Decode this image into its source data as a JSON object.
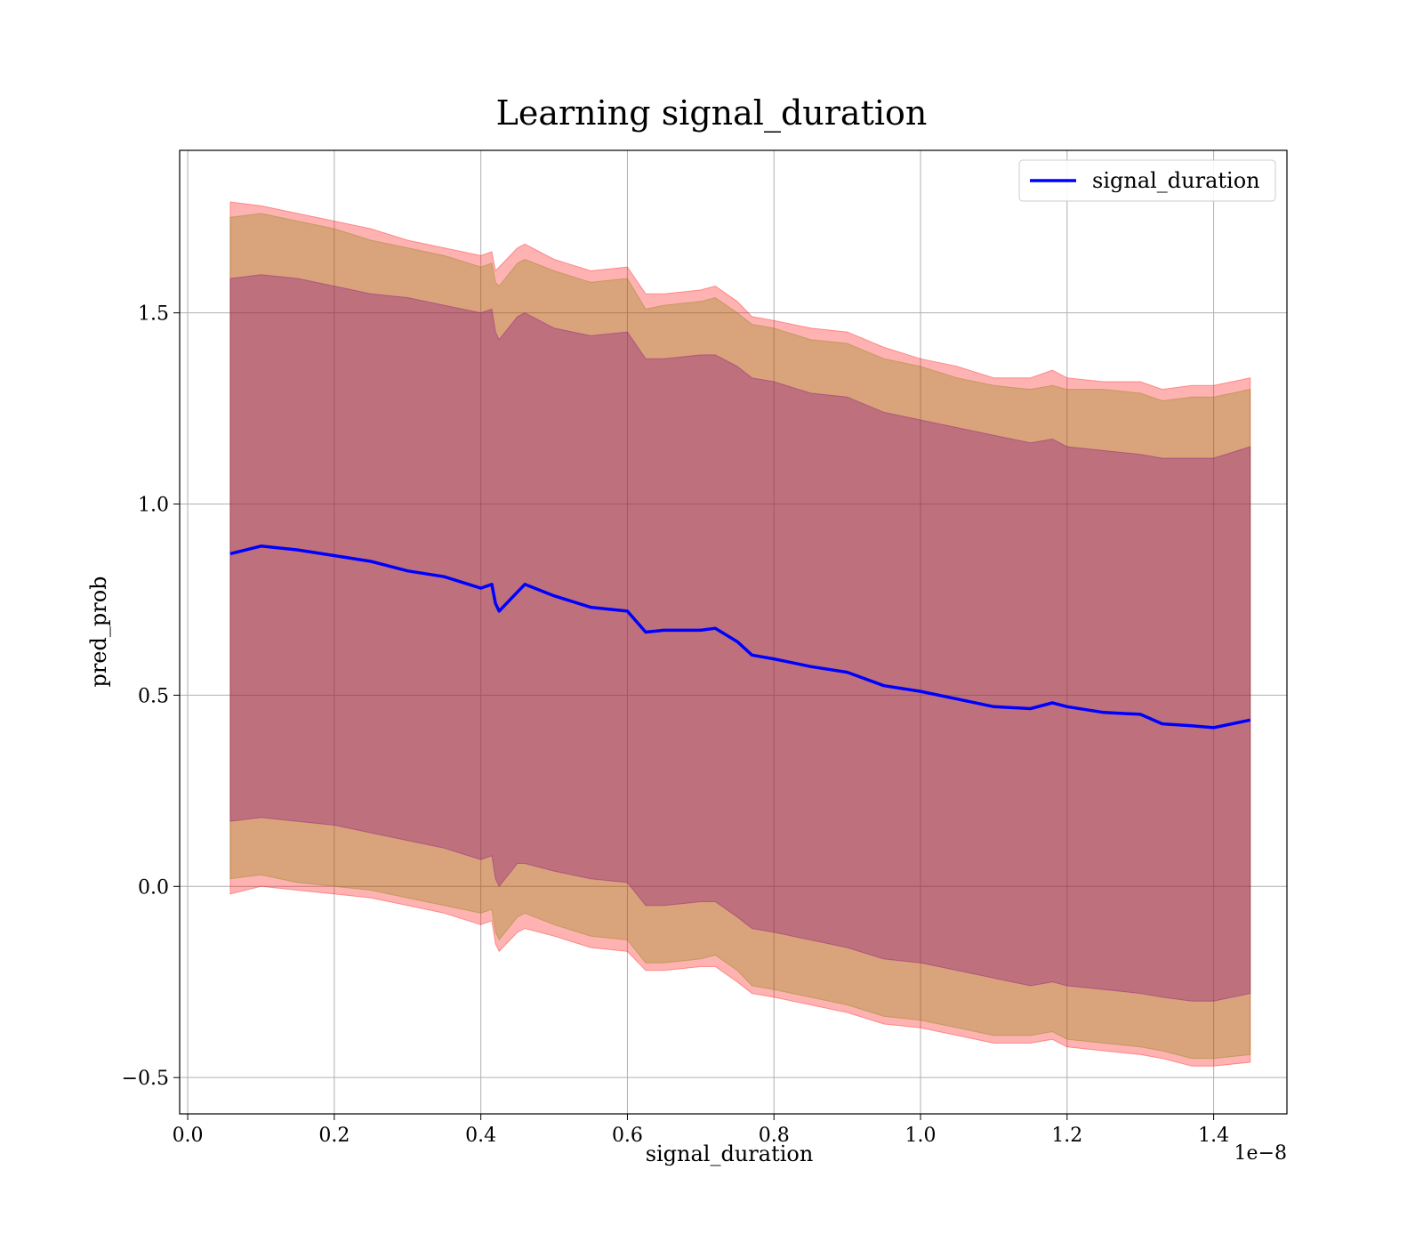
{
  "chart_data": {
    "type": "line",
    "title": "Learning signal_duration",
    "xlabel": "signal_duration",
    "ylabel": "pred_prob",
    "x_offset_label": "1e−8",
    "xlim": [
      -0.011,
      1.5
    ],
    "ylim": [
      -0.595,
      1.925
    ],
    "grid": true,
    "legend_position": "top-right",
    "x_ticks": [
      0.0,
      0.2,
      0.4,
      0.6,
      0.8,
      1.0,
      1.2,
      1.4
    ],
    "x_tick_labels": [
      "0.0",
      "0.2",
      "0.4",
      "0.6",
      "0.8",
      "1.0",
      "1.2",
      "1.4"
    ],
    "y_ticks": [
      -0.5,
      0.0,
      0.5,
      1.0,
      1.5
    ],
    "y_tick_labels": [
      "−0.5",
      "0.0",
      "0.5",
      "1.0",
      "1.5"
    ],
    "colors": {
      "line": "#0000ff",
      "outer_band": "#ff0000",
      "middle_band": "#808000",
      "inner_band": "#800080",
      "grid": "#b0b0b0"
    },
    "series": [
      {
        "name": "signal_duration",
        "x": [
          0.058,
          0.1,
          0.15,
          0.2,
          0.25,
          0.3,
          0.35,
          0.4,
          0.415,
          0.42,
          0.425,
          0.45,
          0.46,
          0.5,
          0.55,
          0.6,
          0.625,
          0.65,
          0.7,
          0.72,
          0.75,
          0.77,
          0.8,
          0.85,
          0.9,
          0.95,
          1.0,
          1.05,
          1.1,
          1.15,
          1.18,
          1.2,
          1.25,
          1.3,
          1.33,
          1.37,
          1.4,
          1.45
        ],
        "values": [
          0.87,
          0.89,
          0.88,
          0.865,
          0.85,
          0.825,
          0.81,
          0.78,
          0.79,
          0.74,
          0.72,
          0.77,
          0.79,
          0.76,
          0.73,
          0.72,
          0.665,
          0.67,
          0.67,
          0.675,
          0.64,
          0.605,
          0.595,
          0.575,
          0.56,
          0.525,
          0.51,
          0.49,
          0.47,
          0.465,
          0.48,
          0.47,
          0.455,
          0.45,
          0.425,
          0.42,
          0.415,
          0.435
        ]
      }
    ],
    "bands": [
      {
        "level": "outer",
        "upper": [
          1.79,
          1.78,
          1.76,
          1.74,
          1.72,
          1.69,
          1.67,
          1.65,
          1.66,
          1.61,
          1.62,
          1.67,
          1.68,
          1.64,
          1.61,
          1.62,
          1.55,
          1.55,
          1.56,
          1.57,
          1.53,
          1.49,
          1.48,
          1.46,
          1.45,
          1.41,
          1.38,
          1.36,
          1.33,
          1.33,
          1.35,
          1.33,
          1.32,
          1.32,
          1.3,
          1.31,
          1.31,
          1.33
        ],
        "lower": [
          -0.02,
          0.0,
          -0.01,
          -0.02,
          -0.03,
          -0.05,
          -0.07,
          -0.1,
          -0.09,
          -0.15,
          -0.17,
          -0.12,
          -0.11,
          -0.13,
          -0.16,
          -0.17,
          -0.22,
          -0.22,
          -0.21,
          -0.21,
          -0.25,
          -0.28,
          -0.29,
          -0.31,
          -0.33,
          -0.36,
          -0.37,
          -0.39,
          -0.41,
          -0.41,
          -0.4,
          -0.42,
          -0.43,
          -0.44,
          -0.45,
          -0.47,
          -0.47,
          -0.46
        ]
      },
      {
        "level": "middle",
        "upper": [
          1.75,
          1.76,
          1.74,
          1.72,
          1.69,
          1.67,
          1.65,
          1.62,
          1.63,
          1.58,
          1.57,
          1.63,
          1.64,
          1.61,
          1.58,
          1.59,
          1.51,
          1.52,
          1.53,
          1.54,
          1.5,
          1.47,
          1.46,
          1.43,
          1.42,
          1.38,
          1.36,
          1.33,
          1.31,
          1.3,
          1.31,
          1.3,
          1.3,
          1.29,
          1.27,
          1.28,
          1.28,
          1.3
        ],
        "lower": [
          0.02,
          0.03,
          0.01,
          0.0,
          -0.01,
          -0.03,
          -0.05,
          -0.07,
          -0.06,
          -0.12,
          -0.14,
          -0.08,
          -0.07,
          -0.1,
          -0.13,
          -0.14,
          -0.2,
          -0.2,
          -0.19,
          -0.18,
          -0.22,
          -0.26,
          -0.27,
          -0.29,
          -0.31,
          -0.34,
          -0.35,
          -0.37,
          -0.39,
          -0.39,
          -0.38,
          -0.4,
          -0.41,
          -0.42,
          -0.43,
          -0.45,
          -0.45,
          -0.44
        ]
      },
      {
        "level": "inner",
        "upper": [
          1.59,
          1.6,
          1.59,
          1.57,
          1.55,
          1.54,
          1.52,
          1.5,
          1.51,
          1.45,
          1.43,
          1.49,
          1.5,
          1.46,
          1.44,
          1.45,
          1.38,
          1.38,
          1.39,
          1.39,
          1.36,
          1.33,
          1.32,
          1.29,
          1.28,
          1.24,
          1.22,
          1.2,
          1.18,
          1.16,
          1.17,
          1.15,
          1.14,
          1.13,
          1.12,
          1.12,
          1.12,
          1.15
        ],
        "lower": [
          0.17,
          0.18,
          0.17,
          0.16,
          0.14,
          0.12,
          0.1,
          0.07,
          0.08,
          0.02,
          0.0,
          0.06,
          0.06,
          0.04,
          0.02,
          0.01,
          -0.05,
          -0.05,
          -0.04,
          -0.04,
          -0.08,
          -0.11,
          -0.12,
          -0.14,
          -0.16,
          -0.19,
          -0.2,
          -0.22,
          -0.24,
          -0.26,
          -0.25,
          -0.26,
          -0.27,
          -0.28,
          -0.29,
          -0.3,
          -0.3,
          -0.28
        ]
      }
    ]
  }
}
